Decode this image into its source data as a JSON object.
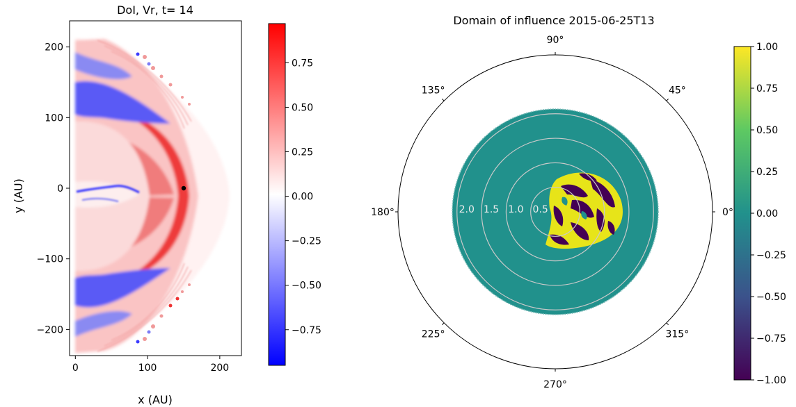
{
  "chart_data": [
    {
      "type": "heatmap",
      "title": "DoI, Vr, t= 14",
      "xlabel": "x (AU)",
      "ylabel": "y (AU)",
      "xlim": [
        -8,
        230
      ],
      "ylim": [
        -237,
        237
      ],
      "x_ticks": [
        0,
        100,
        200
      ],
      "x_tick_labels": [
        "0",
        "100",
        "200"
      ],
      "y_ticks": [
        200,
        100,
        0,
        -100,
        -200
      ],
      "y_tick_labels": [
        "200",
        "100",
        "0",
        "−100",
        "−200"
      ],
      "colorbar": {
        "range": [
          -0.95,
          0.97
        ],
        "ticks": [
          0.75,
          0.5,
          0.25,
          0.0,
          -0.25,
          -0.5,
          -0.75
        ],
        "tick_labels": [
          "0.75",
          "0.50",
          "0.25",
          "0.00",
          "−0.25",
          "−0.50",
          "−0.75"
        ],
        "colors": [
          "#0000ff",
          "#ffffff",
          "#ff0000"
        ]
      },
      "marker": {
        "x": 150,
        "y": 0,
        "color": "#000000"
      }
    },
    {
      "type": "heatmap",
      "projection": "polar",
      "title": "Domain of influence 2015-06-25T13",
      "angle_labels": [
        {
          "deg": 0,
          "label": "0°"
        },
        {
          "deg": 45,
          "label": "45°"
        },
        {
          "deg": 90,
          "label": "90°"
        },
        {
          "deg": 135,
          "label": "135°"
        },
        {
          "deg": 180,
          "label": "180°"
        },
        {
          "deg": 225,
          "label": "225°"
        },
        {
          "deg": 270,
          "label": "270°"
        },
        {
          "deg": 315,
          "label": "315°"
        }
      ],
      "r_ticks": [
        0.5,
        1.0,
        1.5,
        2.0
      ],
      "r_tick_labels": [
        "0.5",
        "1.0",
        "1.5",
        "2.0"
      ],
      "rmax": 3.2,
      "data_radius": 2.3,
      "background_value": 0.0,
      "colorbar": {
        "range": [
          -1.0,
          1.0
        ],
        "ticks": [
          1.0,
          0.75,
          0.5,
          0.25,
          0.0,
          -0.25,
          -0.5,
          -0.75,
          -1.0
        ],
        "tick_labels": [
          "1.00",
          "0.75",
          "0.50",
          "0.25",
          "0.00",
          "−0.25",
          "−0.50",
          "−0.75",
          "−1.00"
        ],
        "colors": [
          "#440154",
          "#3b528b",
          "#21918c",
          "#5ec962",
          "#fde725"
        ]
      }
    }
  ]
}
